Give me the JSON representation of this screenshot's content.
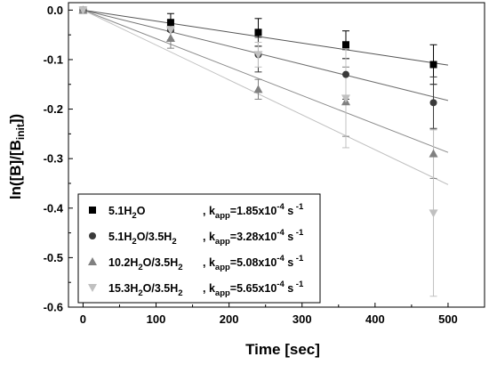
{
  "chart_data": {
    "type": "scatter",
    "xlabel": "Time [sec]",
    "ylabel": "ln([B]/[B",
    "ylabel_sub": "init",
    "ylabel_tail": "])",
    "xlim": [
      -20,
      550
    ],
    "ylim": [
      -0.6,
      0.015
    ],
    "xticks": [
      0,
      100,
      200,
      300,
      400,
      500
    ],
    "xtick_labels": [
      "0",
      "100",
      "200",
      "300",
      "400",
      "500"
    ],
    "yticks": [
      0.0,
      -0.1,
      -0.2,
      -0.3,
      -0.4,
      -0.5,
      -0.6
    ],
    "ytick_labels": [
      "0.0",
      "-0.1",
      "-0.2",
      "-0.3",
      "-0.4",
      "-0.5",
      "-0.6"
    ],
    "grid": false,
    "legend_position": "bottom-left",
    "series": [
      {
        "name": "5.1H2O",
        "name_parts": [
          [
            "5.1H",
            ""
          ],
          [
            "2",
            "sub"
          ],
          [
            "O",
            ""
          ]
        ],
        "k_value": "1.85x10",
        "k_exp": "-4",
        "k_unit": "s",
        "k_unit_exp": "-1",
        "marker": "square",
        "color": "#000000",
        "line_color": "#555555",
        "x": [
          0,
          120,
          240,
          360,
          480
        ],
        "y": [
          0.0,
          -0.025,
          -0.045,
          -0.07,
          -0.11
        ],
        "err": [
          0.005,
          0.018,
          0.028,
          0.028,
          0.04
        ],
        "fit_slope": -0.000222
      },
      {
        "name": "5.1H2O/3.5H2",
        "name_parts": [
          [
            "5.1H",
            ""
          ],
          [
            "2",
            "sub"
          ],
          [
            "O/3.5H",
            ""
          ],
          [
            "2",
            "sub"
          ]
        ],
        "k_value": "3.28x10",
        "k_exp": "-4",
        "k_unit": "s",
        "k_unit_exp": "-1",
        "marker": "circle",
        "color": "#3a3a3a",
        "line_color": "#707070",
        "x": [
          0,
          120,
          240,
          360,
          480
        ],
        "y": [
          0.0,
          -0.04,
          -0.09,
          -0.13,
          -0.187
        ],
        "err": [
          0.005,
          0.02,
          0.035,
          0.05,
          0.052
        ],
        "fit_slope": -0.000365
      },
      {
        "name": "10.2H2O/3.5H2",
        "name_parts": [
          [
            "10.2H",
            ""
          ],
          [
            "2",
            "sub"
          ],
          [
            "O/3.5H",
            ""
          ],
          [
            "2",
            "sub"
          ]
        ],
        "k_value": "5.08x10",
        "k_exp": "-4",
        "k_unit": "s",
        "k_unit_exp": "-1",
        "marker": "triangle-up",
        "color": "#808080",
        "line_color": "#8a8a8a",
        "x": [
          0,
          120,
          240,
          360,
          480
        ],
        "y": [
          0.0,
          -0.057,
          -0.16,
          -0.185,
          -0.29
        ],
        "err": [
          0.005,
          0.02,
          0.02,
          0.07,
          0.05
        ],
        "fit_slope": -0.000575
      },
      {
        "name": "15.3H2O/3.5H2",
        "name_parts": [
          [
            "15.3H",
            ""
          ],
          [
            "2",
            "sub"
          ],
          [
            "O/3.5H",
            ""
          ],
          [
            "2",
            "sub"
          ]
        ],
        "k_value": "5.65x10",
        "k_exp": "-4",
        "k_unit": "s",
        "k_unit_exp": "-1",
        "marker": "triangle-down",
        "color": "#c0c0c0",
        "line_color": "#c0c0c0",
        "x": [
          0,
          120,
          240,
          360,
          480
        ],
        "y": [
          0.0,
          -0.04,
          -0.09,
          -0.178,
          -0.41
        ],
        "err": [
          0.005,
          0.02,
          0.025,
          0.1,
          0.168
        ],
        "fit_slope": -0.000705
      }
    ]
  }
}
